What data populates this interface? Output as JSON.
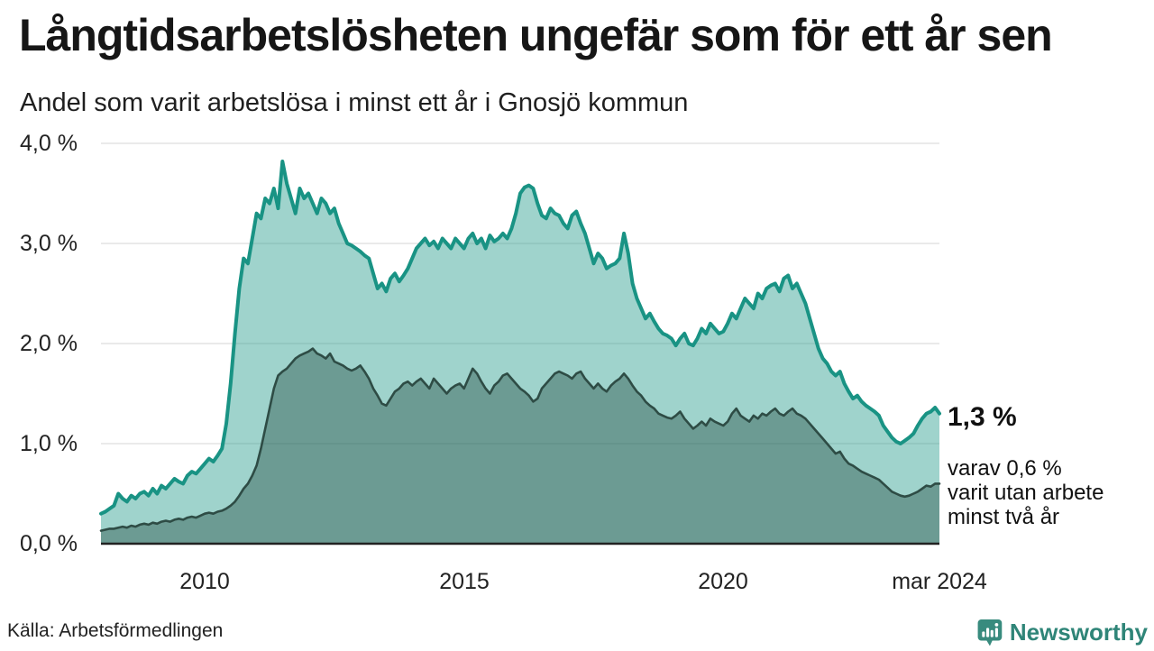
{
  "chart_data": {
    "type": "area",
    "title": "Långtidsarbetslösheten ungefär som för ett år sen",
    "subtitle": "Andel som varit arbetslösa i minst ett år i Gnosjö kommun",
    "unit": "%",
    "frequency": "monthly",
    "x_start": "2008-01",
    "x_end": "2024-03",
    "ylim": [
      0,
      4
    ],
    "grid": true,
    "yticks": [
      "4,0 %",
      "3,0 %",
      "2,0 %",
      "1,0 %",
      "0,0 %"
    ],
    "xticks": [
      {
        "label": "2010",
        "month_index": 24
      },
      {
        "label": "2015",
        "month_index": 84
      },
      {
        "label": "2020",
        "month_index": 144
      },
      {
        "label": "mar 2024",
        "month_index": 194
      }
    ],
    "series": [
      {
        "name": "Arbetslösa minst ett år",
        "line_color": "#199384",
        "fill_color": "rgba(26,150,134,0.42)",
        "values": [
          0.3,
          0.32,
          0.35,
          0.38,
          0.5,
          0.45,
          0.42,
          0.48,
          0.45,
          0.5,
          0.52,
          0.48,
          0.55,
          0.5,
          0.58,
          0.55,
          0.6,
          0.65,
          0.62,
          0.6,
          0.68,
          0.72,
          0.7,
          0.75,
          0.8,
          0.85,
          0.82,
          0.88,
          0.95,
          1.2,
          1.6,
          2.1,
          2.55,
          2.85,
          2.8,
          3.05,
          3.3,
          3.25,
          3.45,
          3.4,
          3.55,
          3.35,
          3.82,
          3.6,
          3.45,
          3.3,
          3.55,
          3.45,
          3.5,
          3.4,
          3.3,
          3.45,
          3.4,
          3.3,
          3.35,
          3.2,
          3.1,
          3.0,
          2.98,
          2.95,
          2.92,
          2.88,
          2.85,
          2.7,
          2.55,
          2.6,
          2.52,
          2.65,
          2.7,
          2.62,
          2.68,
          2.75,
          2.85,
          2.95,
          3.0,
          3.05,
          2.98,
          3.02,
          2.95,
          3.05,
          3.0,
          2.95,
          3.05,
          3.0,
          2.95,
          3.05,
          3.1,
          3.0,
          3.05,
          2.95,
          3.08,
          3.02,
          3.05,
          3.1,
          3.05,
          3.15,
          3.3,
          3.5,
          3.56,
          3.58,
          3.55,
          3.4,
          3.28,
          3.25,
          3.35,
          3.3,
          3.28,
          3.2,
          3.15,
          3.28,
          3.32,
          3.2,
          3.1,
          2.95,
          2.8,
          2.9,
          2.85,
          2.75,
          2.78,
          2.8,
          2.85,
          3.1,
          2.9,
          2.6,
          2.45,
          2.35,
          2.25,
          2.3,
          2.22,
          2.15,
          2.1,
          2.08,
          2.05,
          1.98,
          2.05,
          2.1,
          2.0,
          1.98,
          2.05,
          2.15,
          2.1,
          2.2,
          2.15,
          2.1,
          2.12,
          2.2,
          2.3,
          2.25,
          2.35,
          2.45,
          2.4,
          2.35,
          2.5,
          2.45,
          2.55,
          2.58,
          2.6,
          2.52,
          2.65,
          2.68,
          2.55,
          2.6,
          2.5,
          2.4,
          2.25,
          2.1,
          1.95,
          1.85,
          1.8,
          1.72,
          1.68,
          1.72,
          1.6,
          1.52,
          1.45,
          1.48,
          1.42,
          1.38,
          1.35,
          1.32,
          1.28,
          1.18,
          1.12,
          1.06,
          1.02,
          1.0,
          1.03,
          1.06,
          1.1,
          1.18,
          1.25,
          1.3,
          1.32,
          1.36,
          1.3
        ]
      },
      {
        "name": "Varit utan arbete minst två år",
        "line_color": "#2e4c45",
        "fill_color": "rgba(44,84,74,0.44)",
        "values": [
          0.13,
          0.14,
          0.15,
          0.15,
          0.16,
          0.17,
          0.16,
          0.18,
          0.17,
          0.19,
          0.2,
          0.19,
          0.21,
          0.2,
          0.22,
          0.23,
          0.22,
          0.24,
          0.25,
          0.24,
          0.26,
          0.27,
          0.26,
          0.28,
          0.3,
          0.31,
          0.3,
          0.32,
          0.33,
          0.35,
          0.38,
          0.42,
          0.48,
          0.55,
          0.6,
          0.68,
          0.78,
          0.95,
          1.15,
          1.35,
          1.55,
          1.68,
          1.72,
          1.75,
          1.8,
          1.85,
          1.88,
          1.9,
          1.92,
          1.95,
          1.9,
          1.88,
          1.85,
          1.9,
          1.82,
          1.8,
          1.78,
          1.75,
          1.73,
          1.75,
          1.78,
          1.72,
          1.65,
          1.55,
          1.48,
          1.4,
          1.38,
          1.45,
          1.52,
          1.55,
          1.6,
          1.62,
          1.58,
          1.62,
          1.65,
          1.6,
          1.55,
          1.65,
          1.6,
          1.55,
          1.5,
          1.55,
          1.58,
          1.6,
          1.55,
          1.65,
          1.75,
          1.7,
          1.62,
          1.55,
          1.5,
          1.58,
          1.62,
          1.68,
          1.7,
          1.65,
          1.6,
          1.55,
          1.52,
          1.48,
          1.42,
          1.45,
          1.55,
          1.6,
          1.65,
          1.7,
          1.72,
          1.7,
          1.68,
          1.65,
          1.7,
          1.72,
          1.65,
          1.6,
          1.55,
          1.6,
          1.55,
          1.52,
          1.58,
          1.62,
          1.65,
          1.7,
          1.65,
          1.58,
          1.52,
          1.48,
          1.42,
          1.38,
          1.35,
          1.3,
          1.28,
          1.26,
          1.25,
          1.28,
          1.32,
          1.25,
          1.2,
          1.15,
          1.18,
          1.22,
          1.18,
          1.25,
          1.22,
          1.2,
          1.18,
          1.22,
          1.3,
          1.35,
          1.28,
          1.25,
          1.22,
          1.28,
          1.25,
          1.3,
          1.28,
          1.32,
          1.35,
          1.3,
          1.28,
          1.32,
          1.35,
          1.3,
          1.28,
          1.25,
          1.2,
          1.15,
          1.1,
          1.05,
          1.0,
          0.95,
          0.9,
          0.92,
          0.85,
          0.8,
          0.78,
          0.75,
          0.72,
          0.7,
          0.68,
          0.66,
          0.64,
          0.6,
          0.56,
          0.52,
          0.5,
          0.48,
          0.47,
          0.48,
          0.5,
          0.52,
          0.55,
          0.58,
          0.57,
          0.6,
          0.6
        ]
      }
    ],
    "annotations": {
      "value_label": "1,3 %",
      "sub_line1": "varav 0,6 %",
      "sub_line2": "varit utan arbete",
      "sub_line3": "minst två år"
    },
    "colors": {
      "grid": "#e4e4e4",
      "baseline": "#222222",
      "total_line": "#199384",
      "total_fill": "#a3d3cc",
      "two_year_line": "#2e4c45",
      "two_year_fill": "#6f9b93"
    }
  },
  "footer": {
    "source": "Källa: Arbetsförmedlingen",
    "logo_text": "Newsworthy",
    "logo_color": "#2f8578"
  }
}
